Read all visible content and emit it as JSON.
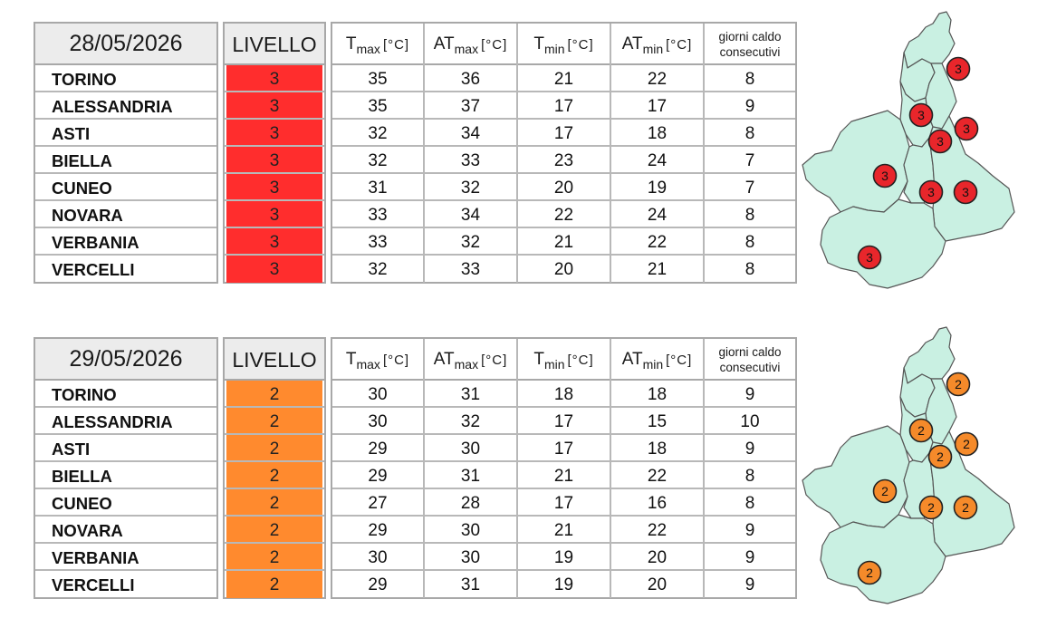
{
  "columns": {
    "tmax": {
      "main": "T",
      "sub": "max",
      "unit": "[°C]"
    },
    "atmax": {
      "main": "AT",
      "sub": "max",
      "unit": "[°C]"
    },
    "tmin": {
      "main": "T",
      "sub": "min",
      "unit": "[°C]"
    },
    "atmin": {
      "main": "AT",
      "sub": "min",
      "unit": "[°C]"
    },
    "days": {
      "line1": "giorni caldo",
      "line2": "consecutivi"
    }
  },
  "level_header": "LIVELLO",
  "blocks": [
    {
      "date": "28/05/2026",
      "level_color": "#ff2d2d",
      "badge_color": "#e8262b",
      "rows": [
        {
          "city": "TORINO",
          "level": "3",
          "tmax": "35",
          "atmax": "36",
          "tmin": "21",
          "atmin": "22",
          "days": "8"
        },
        {
          "city": "ALESSANDRIA",
          "level": "3",
          "tmax": "35",
          "atmax": "37",
          "tmin": "17",
          "atmin": "17",
          "days": "9"
        },
        {
          "city": "ASTI",
          "level": "3",
          "tmax": "32",
          "atmax": "34",
          "tmin": "17",
          "atmin": "18",
          "days": "8"
        },
        {
          "city": "BIELLA",
          "level": "3",
          "tmax": "32",
          "atmax": "33",
          "tmin": "23",
          "atmin": "24",
          "days": "7"
        },
        {
          "city": "CUNEO",
          "level": "3",
          "tmax": "31",
          "atmax": "32",
          "tmin": "20",
          "atmin": "19",
          "days": "7"
        },
        {
          "city": "NOVARA",
          "level": "3",
          "tmax": "33",
          "atmax": "34",
          "tmin": "22",
          "atmin": "24",
          "days": "8"
        },
        {
          "city": "VERBANIA",
          "level": "3",
          "tmax": "33",
          "atmax": "32",
          "tmin": "21",
          "atmin": "22",
          "days": "8"
        },
        {
          "city": "VERCELLI",
          "level": "3",
          "tmax": "32",
          "atmax": "33",
          "tmin": "20",
          "atmin": "21",
          "days": "8"
        }
      ],
      "map_badges": [
        "3",
        "3",
        "3",
        "3",
        "3",
        "3",
        "3",
        "3"
      ]
    },
    {
      "date": "29/05/2026",
      "level_color": "#ff8a2e",
      "badge_color": "#f58a2a",
      "rows": [
        {
          "city": "TORINO",
          "level": "2",
          "tmax": "30",
          "atmax": "31",
          "tmin": "18",
          "atmin": "18",
          "days": "9"
        },
        {
          "city": "ALESSANDRIA",
          "level": "2",
          "tmax": "30",
          "atmax": "32",
          "tmin": "17",
          "atmin": "15",
          "days": "10"
        },
        {
          "city": "ASTI",
          "level": "2",
          "tmax": "29",
          "atmax": "30",
          "tmin": "17",
          "atmin": "18",
          "days": "9"
        },
        {
          "city": "BIELLA",
          "level": "2",
          "tmax": "29",
          "atmax": "31",
          "tmin": "21",
          "atmin": "22",
          "days": "8"
        },
        {
          "city": "CUNEO",
          "level": "2",
          "tmax": "27",
          "atmax": "28",
          "tmin": "17",
          "atmin": "16",
          "days": "8"
        },
        {
          "city": "NOVARA",
          "level": "2",
          "tmax": "29",
          "atmax": "30",
          "tmin": "21",
          "atmin": "22",
          "days": "9"
        },
        {
          "city": "VERBANIA",
          "level": "2",
          "tmax": "30",
          "atmax": "30",
          "tmin": "19",
          "atmin": "20",
          "days": "9"
        },
        {
          "city": "VERCELLI",
          "level": "2",
          "tmax": "29",
          "atmax": "31",
          "tmin": "19",
          "atmin": "20",
          "days": "9"
        }
      ],
      "map_badges": [
        "2",
        "2",
        "2",
        "2",
        "2",
        "2",
        "2",
        "2"
      ]
    }
  ],
  "map": {
    "region_fill": "#c9f0e2",
    "outline_color": "#555555"
  }
}
